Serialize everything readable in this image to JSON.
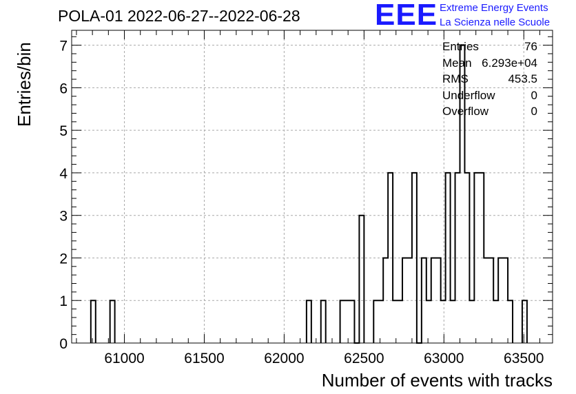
{
  "title": "POLA-01 2022-06-27--2022-06-28",
  "logo": {
    "mark": "EEE",
    "line1": "Extreme Energy Events",
    "line2": "La Scienza nelle Scuole",
    "color": "#1a1aff"
  },
  "stats": [
    {
      "label": "Entries",
      "value": "76"
    },
    {
      "label": "Mean",
      "value": "6.293e+04"
    },
    {
      "label": "RMS",
      "value": "453.5"
    },
    {
      "label": "Underflow",
      "value": "0"
    },
    {
      "label": "Overflow",
      "value": "0"
    }
  ],
  "chart_data": {
    "type": "histogram",
    "xlabel": "Number of events with tracks",
    "ylabel": "Entries/bin",
    "xlim": [
      60670,
      63680
    ],
    "ylim": [
      0,
      7.35
    ],
    "bin_width": 30,
    "grid": true,
    "stats_box": "top-right",
    "line_color": "#000000",
    "x_ticks": [
      61000,
      61500,
      62000,
      62500,
      63000,
      63500
    ],
    "x_tick_labels": [
      "61000",
      "61500",
      "62000",
      "62500",
      "63000",
      "63500"
    ],
    "y_ticks": [
      0,
      1,
      2,
      3,
      4,
      5,
      6,
      7
    ],
    "y_tick_labels": [
      "0",
      "1",
      "2",
      "3",
      "4",
      "5",
      "6",
      "7"
    ],
    "bins": [
      {
        "x": 60790,
        "count": 1
      },
      {
        "x": 60910,
        "count": 1
      },
      {
        "x": 62140,
        "count": 1
      },
      {
        "x": 62230,
        "count": 1
      },
      {
        "x": 62350,
        "count": 1
      },
      {
        "x": 62380,
        "count": 1
      },
      {
        "x": 62410,
        "count": 1
      },
      {
        "x": 62440,
        "count": 0
      },
      {
        "x": 62470,
        "count": 3
      },
      {
        "x": 62560,
        "count": 1
      },
      {
        "x": 62590,
        "count": 1
      },
      {
        "x": 62620,
        "count": 2
      },
      {
        "x": 62650,
        "count": 4
      },
      {
        "x": 62680,
        "count": 1
      },
      {
        "x": 62710,
        "count": 1
      },
      {
        "x": 62740,
        "count": 2
      },
      {
        "x": 62770,
        "count": 2
      },
      {
        "x": 62800,
        "count": 4
      },
      {
        "x": 62830,
        "count": 0
      },
      {
        "x": 62860,
        "count": 2
      },
      {
        "x": 62890,
        "count": 1
      },
      {
        "x": 62920,
        "count": 2
      },
      {
        "x": 62950,
        "count": 2
      },
      {
        "x": 62980,
        "count": 1
      },
      {
        "x": 63010,
        "count": 4
      },
      {
        "x": 63040,
        "count": 1
      },
      {
        "x": 63070,
        "count": 4
      },
      {
        "x": 63100,
        "count": 7
      },
      {
        "x": 63130,
        "count": 4
      },
      {
        "x": 63160,
        "count": 1
      },
      {
        "x": 63190,
        "count": 4
      },
      {
        "x": 63220,
        "count": 4
      },
      {
        "x": 63250,
        "count": 2
      },
      {
        "x": 63280,
        "count": 2
      },
      {
        "x": 63310,
        "count": 1
      },
      {
        "x": 63340,
        "count": 2
      },
      {
        "x": 63370,
        "count": 2
      },
      {
        "x": 63400,
        "count": 1
      },
      {
        "x": 63490,
        "count": 1
      }
    ]
  }
}
